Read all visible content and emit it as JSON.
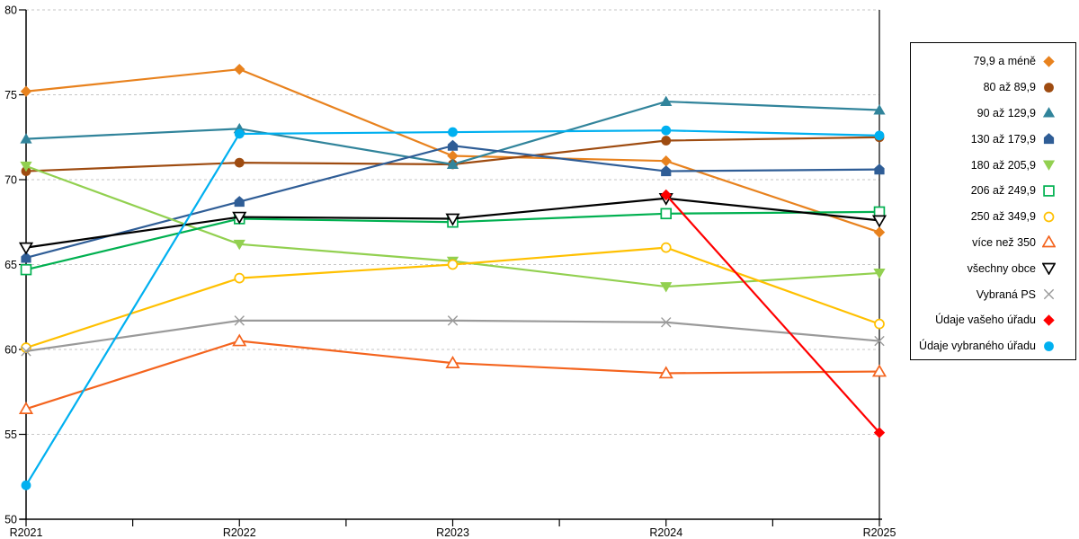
{
  "chart_data": {
    "type": "line",
    "title": "",
    "xlabel": "",
    "ylabel": "",
    "categories": [
      "R2021",
      "R2022",
      "R2023",
      "R2024",
      "R2025"
    ],
    "ylim": [
      50,
      80
    ],
    "ytick_step": 5,
    "grid": "horizontal-dashed",
    "legend_position": "right",
    "background": "#FFFFFF",
    "gridline_color": "#C6C6C6",
    "axis_color": "#000000",
    "series": [
      {
        "name": "79,9 a méně",
        "color": "#E8821E",
        "marker": "diamond",
        "style": "filled",
        "values": [
          75.2,
          76.5,
          71.4,
          71.1,
          66.9
        ]
      },
      {
        "name": "80 až 89,9",
        "color": "#9E4B10",
        "marker": "circle",
        "style": "filled",
        "values": [
          70.5,
          71.0,
          70.9,
          72.3,
          72.5
        ]
      },
      {
        "name": "90 až 129,9",
        "color": "#31849B",
        "marker": "triangle-up",
        "style": "filled",
        "values": [
          72.4,
          73.0,
          70.9,
          74.6,
          74.1
        ]
      },
      {
        "name": "130 až 179,9",
        "color": "#2F5D96",
        "marker": "pentagon",
        "style": "filled",
        "values": [
          65.4,
          68.7,
          72.0,
          70.5,
          70.6
        ]
      },
      {
        "name": "180 až 205,9",
        "color": "#92D050",
        "marker": "triangle-down",
        "style": "filled",
        "values": [
          70.8,
          66.2,
          65.2,
          63.7,
          64.5
        ]
      },
      {
        "name": "206 až 249,9",
        "color": "#00B050",
        "marker": "square",
        "style": "open",
        "values": [
          64.7,
          67.7,
          67.5,
          68.0,
          68.1
        ]
      },
      {
        "name": "250 až 349,9",
        "color": "#FFC000",
        "marker": "circle",
        "style": "open",
        "values": [
          60.1,
          64.2,
          65.0,
          66.0,
          61.5
        ]
      },
      {
        "name": "více než 350",
        "color": "#F4641E",
        "marker": "triangle-up",
        "style": "open",
        "values": [
          56.5,
          60.5,
          59.2,
          58.6,
          58.7
        ]
      },
      {
        "name": "všechny obce",
        "color": "#000000",
        "marker": "triangle-down",
        "style": "open",
        "values": [
          66.0,
          67.8,
          67.7,
          68.9,
          67.6
        ]
      },
      {
        "name": "Vybraná PS",
        "color": "#9A9A9A",
        "marker": "x",
        "style": "line",
        "values": [
          59.9,
          61.7,
          61.7,
          61.6,
          60.5
        ]
      },
      {
        "name": "Údaje vašeho úřadu",
        "color": "#FF0000",
        "marker": "diamond",
        "style": "filled",
        "values": [
          null,
          null,
          null,
          69.1,
          55.1
        ]
      },
      {
        "name": "Údaje vybraného úřadu",
        "color": "#00B0F0",
        "marker": "circle",
        "style": "filled",
        "values": [
          52.0,
          72.7,
          72.8,
          72.9,
          72.6
        ]
      }
    ]
  }
}
